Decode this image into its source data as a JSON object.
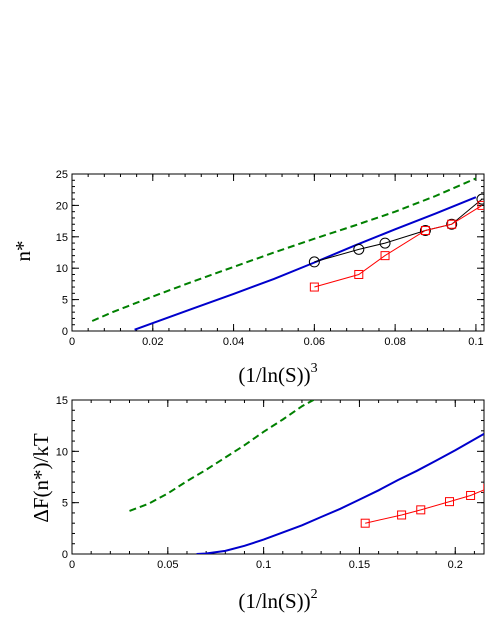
{
  "chart_data": [
    {
      "type": "line",
      "ylabel": "n*",
      "xlabel": {
        "base": "(1/ln(S))",
        "sup": "3"
      },
      "xlim": [
        0,
        0.102
      ],
      "ylim": [
        0,
        25
      ],
      "xticks": [
        0,
        0.02,
        0.04,
        0.06,
        0.08,
        0.1
      ],
      "xtick_labels": [
        "0",
        "0.02",
        "0.04",
        "0.06",
        "0.08",
        "0.1"
      ],
      "yticks": [
        0,
        5,
        10,
        15,
        20,
        25
      ],
      "ytick_labels": [
        "0",
        "5",
        "10",
        "15",
        "20",
        "25"
      ],
      "minor_x_step": 0.004,
      "minor_y_step": 1,
      "grid": false,
      "series": [
        {
          "style": "dashed",
          "color": "#008000",
          "marker": "none",
          "x": [
            0.005,
            0.01,
            0.02,
            0.03,
            0.04,
            0.05,
            0.06,
            0.07,
            0.08,
            0.09,
            0.1
          ],
          "y": [
            1.6,
            3.0,
            5.5,
            7.9,
            10.2,
            12.5,
            14.7,
            16.8,
            19.0,
            21.5,
            24.3
          ]
        },
        {
          "style": "solid",
          "color": "#0000cc",
          "marker": "none",
          "x": [
            0.0155,
            0.03,
            0.04,
            0.05,
            0.06,
            0.07,
            0.08,
            0.09,
            0.1
          ],
          "y": [
            0.2,
            3.6,
            5.9,
            8.3,
            10.9,
            13.6,
            16.2,
            18.7,
            21.3
          ]
        },
        {
          "style": "solid",
          "color": "#000000",
          "marker": "circle",
          "x": [
            0.06,
            0.071,
            0.0775,
            0.0875,
            0.094,
            0.1015
          ],
          "y": [
            11,
            13,
            14,
            16,
            17,
            21
          ]
        },
        {
          "style": "solid",
          "color": "#ff0000",
          "marker": "square",
          "x": [
            0.06,
            0.071,
            0.0775,
            0.0875,
            0.094,
            0.1015
          ],
          "y": [
            7,
            9,
            12,
            16,
            17,
            20
          ]
        }
      ]
    },
    {
      "type": "line",
      "ylabel": "ΔF(n*)/kT",
      "xlabel": {
        "base": "(1/ln(S))",
        "sup": "2"
      },
      "xlim": [
        0,
        0.215
      ],
      "ylim": [
        0,
        15
      ],
      "xticks": [
        0,
        0.05,
        0.1,
        0.15,
        0.2
      ],
      "xtick_labels": [
        "0",
        "0.05",
        "0.1",
        "0.15",
        "0.2"
      ],
      "yticks": [
        0,
        5,
        10,
        15
      ],
      "ytick_labels": [
        "0",
        "5",
        "10",
        "15"
      ],
      "minor_x_step": 0.01,
      "minor_y_step": 1,
      "grid": false,
      "series": [
        {
          "style": "dashed",
          "color": "#008000",
          "marker": "none",
          "x": [
            0.03,
            0.04,
            0.05,
            0.06,
            0.07,
            0.08,
            0.09,
            0.1,
            0.11,
            0.12,
            0.126
          ],
          "y": [
            4.2,
            4.9,
            5.9,
            7.1,
            8.2,
            9.4,
            10.6,
            11.9,
            13.1,
            14.4,
            15.0
          ]
        },
        {
          "style": "solid",
          "color": "#0000cc",
          "marker": "none",
          "x": [
            0.065,
            0.07,
            0.08,
            0.09,
            0.1,
            0.11,
            0.12,
            0.13,
            0.14,
            0.15,
            0.16,
            0.17,
            0.18,
            0.19,
            0.2,
            0.215
          ],
          "y": [
            0,
            0.05,
            0.3,
            0.8,
            1.4,
            2.1,
            2.8,
            3.6,
            4.4,
            5.3,
            6.2,
            7.2,
            8.1,
            9.1,
            10.1,
            11.7
          ]
        },
        {
          "style": "solid",
          "color": "#ff0000",
          "marker": "square",
          "x": [
            0.153,
            0.172,
            0.182,
            0.197,
            0.208,
            0.217
          ],
          "y": [
            3.0,
            3.8,
            4.3,
            5.1,
            5.7,
            6.4
          ]
        }
      ]
    }
  ]
}
